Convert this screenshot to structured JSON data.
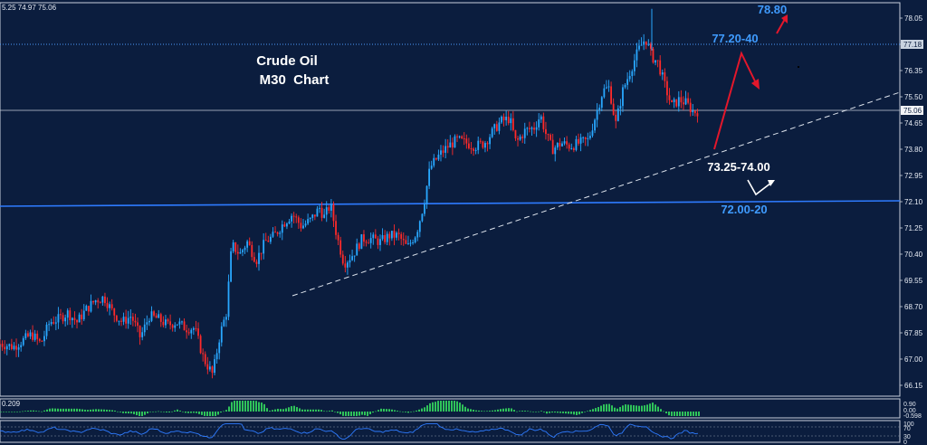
{
  "header": {
    "ohlc_text": "5.25 74.97 75.06"
  },
  "title": {
    "line1": "Crude Oil",
    "line2": "M30  Chart"
  },
  "annotations": {
    "target_high": "78.80",
    "resistance": "77.20-40",
    "support": "73.25-74.00",
    "support_low": "72.00-20"
  },
  "price_axis": {
    "ticks": [
      "78.05",
      "77.20",
      "76.35",
      "75.50",
      "74.65",
      "73.80",
      "72.95",
      "72.10",
      "71.25",
      "70.40",
      "69.55",
      "68.70",
      "67.85",
      "67.00",
      "66.15"
    ],
    "tag_bid": "77.18",
    "tag_last": "75.06"
  },
  "macd": {
    "label": "0.209",
    "axis": [
      "0.90",
      "0.00",
      "-0.598"
    ]
  },
  "rsi": {
    "axis": [
      "100",
      "70",
      "30",
      "0"
    ]
  },
  "colors": {
    "background": "#0b1d3e",
    "bull": "#29a8ff",
    "bear": "#ff2a2a",
    "level_line": "#2e7bff",
    "annotation_blue": "#3f9bff",
    "arrow_red": "#e3172b",
    "macd_bar": "#2fc35a"
  },
  "chart_data": {
    "type": "candlestick",
    "title": "Crude Oil M30 Chart",
    "ylim": [
      65.6,
      78.5
    ],
    "x_count": 300,
    "close_anchors": [
      [
        0,
        67.5
      ],
      [
        15,
        67.4
      ],
      [
        25,
        67.6
      ],
      [
        35,
        67.8
      ],
      [
        45,
        67.5
      ],
      [
        55,
        68.2
      ],
      [
        65,
        68.3
      ],
      [
        75,
        68.5
      ],
      [
        85,
        68.2
      ],
      [
        95,
        68.6
      ],
      [
        105,
        68.9
      ],
      [
        115,
        69.0
      ],
      [
        125,
        68.5
      ],
      [
        135,
        68.2
      ],
      [
        145,
        68.4
      ],
      [
        155,
        67.7
      ],
      [
        165,
        68.4
      ],
      [
        175,
        68.3
      ],
      [
        185,
        68.1
      ],
      [
        195,
        68.2
      ],
      [
        205,
        68.0
      ],
      [
        215,
        68.0
      ],
      [
        225,
        67.0
      ],
      [
        235,
        66.5
      ],
      [
        243,
        67.8
      ],
      [
        250,
        68.5
      ],
      [
        256,
        70.7
      ],
      [
        265,
        70.4
      ],
      [
        273,
        70.8
      ],
      [
        283,
        70.2
      ],
      [
        293,
        70.8
      ],
      [
        303,
        71.0
      ],
      [
        313,
        71.4
      ],
      [
        323,
        71.7
      ],
      [
        333,
        71.3
      ],
      [
        343,
        71.5
      ],
      [
        353,
        71.9
      ],
      [
        358,
        71.6
      ],
      [
        365,
        72.0
      ],
      [
        372,
        71.0
      ],
      [
        380,
        70.1
      ],
      [
        390,
        70.4
      ],
      [
        400,
        70.9
      ],
      [
        410,
        70.9
      ],
      [
        420,
        70.8
      ],
      [
        430,
        71.0
      ],
      [
        440,
        71.0
      ],
      [
        450,
        70.6
      ],
      [
        460,
        71.1
      ],
      [
        468,
        72.0
      ],
      [
        475,
        73.2
      ],
      [
        485,
        73.6
      ],
      [
        495,
        73.9
      ],
      [
        505,
        74.1
      ],
      [
        515,
        74.0
      ],
      [
        525,
        73.9
      ],
      [
        535,
        74.0
      ],
      [
        545,
        74.4
      ],
      [
        553,
        74.7
      ],
      [
        563,
        74.8
      ],
      [
        570,
        74.0
      ],
      [
        580,
        74.4
      ],
      [
        590,
        74.5
      ],
      [
        597,
        74.9
      ],
      [
        603,
        74.3
      ],
      [
        610,
        73.8
      ],
      [
        620,
        74.0
      ],
      [
        630,
        73.9
      ],
      [
        640,
        74.0
      ],
      [
        650,
        74.1
      ],
      [
        660,
        75.1
      ],
      [
        666,
        75.7
      ],
      [
        673,
        75.8
      ],
      [
        680,
        74.6
      ],
      [
        688,
        75.7
      ],
      [
        697,
        76.4
      ],
      [
        705,
        77.0
      ],
      [
        713,
        77.4
      ],
      [
        720,
        76.8
      ],
      [
        727,
        76.6
      ],
      [
        735,
        75.8
      ],
      [
        742,
        75.2
      ],
      [
        750,
        75.4
      ],
      [
        758,
        75.3
      ],
      [
        766,
        75.0
      ],
      [
        773,
        75.06
      ]
    ]
  }
}
